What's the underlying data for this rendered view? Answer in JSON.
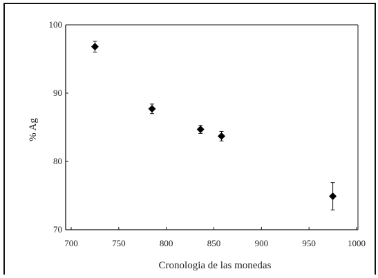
{
  "chart_data": {
    "type": "scatter",
    "title": "",
    "xlabel": "Cronologia de las monedas",
    "ylabel": "% Ag",
    "xlim": [
      700,
      1000
    ],
    "ylim": [
      70,
      100
    ],
    "xticks": [
      700,
      750,
      800,
      850,
      900,
      950,
      1000
    ],
    "yticks": [
      70,
      80,
      90,
      100
    ],
    "xtick_labels": [
      "700",
      "750",
      "800",
      "850",
      "900",
      "950",
      "1000"
    ],
    "ytick_labels": [
      "70",
      "80",
      "90",
      "100"
    ],
    "grid": false,
    "series": [
      {
        "points": [
          {
            "x": 725,
            "y": 96.8,
            "err": 0.8
          },
          {
            "x": 785,
            "y": 87.7,
            "err": 0.7
          },
          {
            "x": 836,
            "y": 84.7,
            "err": 0.6
          },
          {
            "x": 858,
            "y": 83.7,
            "err": 0.7
          },
          {
            "x": 975,
            "y": 74.9,
            "err": 2.0
          }
        ]
      }
    ]
  }
}
